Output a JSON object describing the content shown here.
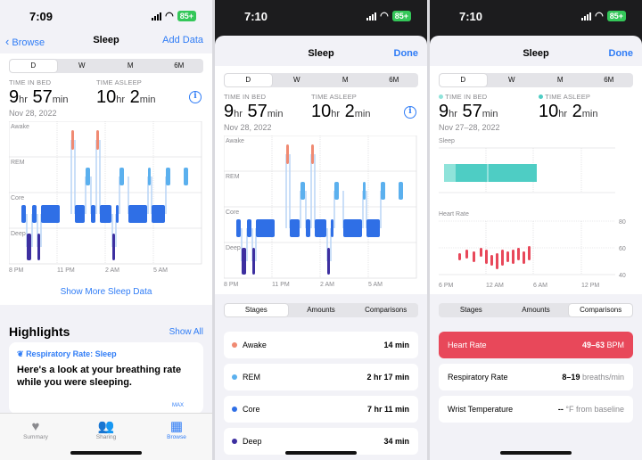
{
  "status": {
    "time1": "7:09",
    "time2": "7:10",
    "time3": "7:10",
    "battery": "85+"
  },
  "nav": {
    "back": "Browse",
    "title": "Sleep",
    "add": "Add Data",
    "done": "Done"
  },
  "ranges": [
    "D",
    "W",
    "M",
    "6M"
  ],
  "summary": {
    "in_bed_label": "TIME IN BED",
    "asleep_label": "TIME ASLEEP",
    "in_bed_hr": "9",
    "in_bed_min": "57",
    "asleep_hr": "10",
    "asleep_min": "2",
    "hr_unit": "hr",
    "min_unit": "min",
    "date": "Nov 28, 2022",
    "date_range": "Nov 27–28, 2022"
  },
  "stage_chart": {
    "stages": [
      "Awake",
      "REM",
      "Core",
      "Deep"
    ],
    "x_ticks": [
      "8 PM",
      "11 PM",
      "2 AM",
      "5 AM"
    ]
  },
  "show_more": "Show More Sleep Data",
  "highlights": {
    "title": "Highlights",
    "show_all": "Show All",
    "card_title": "Respiratory Rate: Sleep",
    "card_text": "Here's a look at your breathing rate while you were sleeping.",
    "max_label": "MAX"
  },
  "tabs": [
    "Summary",
    "Sharing",
    "Browse"
  ],
  "detail_tabs": [
    "Stages",
    "Amounts",
    "Comparisons"
  ],
  "stage_rows": [
    {
      "name": "Awake",
      "value": "14 min",
      "color": "#f08a72"
    },
    {
      "name": "REM",
      "value": "2 hr 17 min",
      "color": "#5bb0ee"
    },
    {
      "name": "Core",
      "value": "7 hr 11 min",
      "color": "#2f6fe6"
    },
    {
      "name": "Deep",
      "value": "34 min",
      "color": "#3d2fa0"
    }
  ],
  "comparison": {
    "sleep_label": "Sleep",
    "hr_label": "Heart Rate",
    "y_ticks": [
      "80",
      "60",
      "40"
    ],
    "x_ticks": [
      "6 PM",
      "12 AM",
      "6 AM",
      "12 PM"
    ],
    "rows": [
      {
        "name": "Heart Rate",
        "value": "49–63",
        "unit": "BPM"
      },
      {
        "name": "Respiratory Rate",
        "value": "8–19",
        "unit": "breaths/min"
      },
      {
        "name": "Wrist Temperature",
        "value": "--",
        "unit": "°F from baseline"
      }
    ]
  },
  "colors": {
    "accent": "#2f7cf6",
    "awake": "#f08a72",
    "rem": "#5bb0ee",
    "core": "#2f6fe6",
    "deep": "#3d2fa0",
    "in_bed": "#8fe3da",
    "asleep": "#4ecdc4",
    "heart": "#e8485a"
  }
}
